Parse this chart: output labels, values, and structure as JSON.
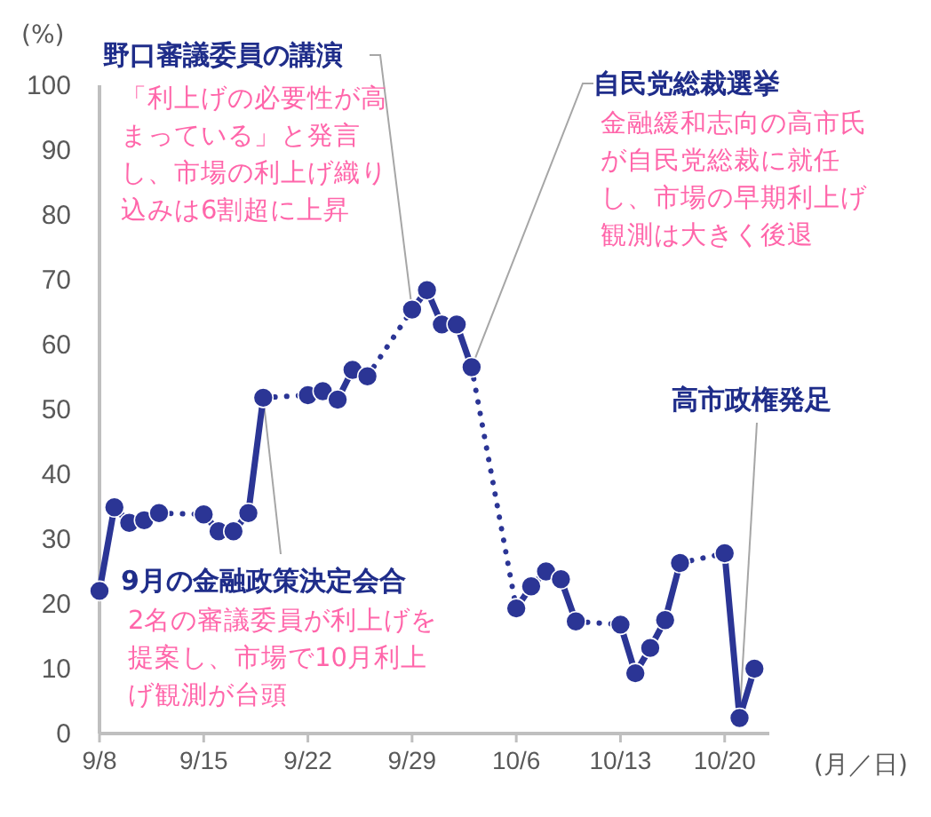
{
  "chart_data": {
    "type": "line",
    "ylabel": "(%)",
    "xlabel": "(月／日)",
    "x": [
      "--09-08",
      "--09-09",
      "--09-10",
      "--09-11",
      "--09-12",
      "--09-15",
      "--09-16",
      "--09-17",
      "--09-18",
      "--09-19",
      "--09-22",
      "--09-23",
      "--09-24",
      "--09-25",
      "--09-26",
      "--09-29",
      "--09-30",
      "--10-01",
      "--10-02",
      "--10-03",
      "--10-06",
      "--10-07",
      "--10-08",
      "--10-09",
      "--10-10",
      "--10-13",
      "--10-14",
      "--10-15",
      "--10-16",
      "--10-17",
      "--10-20",
      "--10-21",
      "--10-22"
    ],
    "series": [
      {
        "color": "#2b3595",
        "values": [
          22.0,
          34.9,
          32.5,
          32.9,
          34.0,
          33.8,
          31.2,
          31.2,
          34.0,
          51.8,
          52.2,
          52.8,
          51.5,
          56.1,
          55.1,
          65.4,
          68.4,
          63.1,
          63.1,
          56.5,
          19.3,
          22.7,
          25.0,
          23.8,
          17.3,
          16.8,
          9.3,
          13.2,
          17.5,
          26.3,
          27.8,
          2.4,
          10.0
        ]
      }
    ],
    "marker": "circle",
    "ylim": [
      0,
      100
    ],
    "yticks": [
      0,
      10,
      20,
      30,
      40,
      50,
      60,
      70,
      80,
      90,
      100
    ],
    "xlim": [
      "--09-08",
      "--10-23"
    ],
    "xticks": [
      {
        "value": "--09-08",
        "label": "9/8"
      },
      {
        "value": "--09-15",
        "label": "9/15"
      },
      {
        "value": "--09-22",
        "label": "9/22"
      },
      {
        "value": "--09-29",
        "label": "9/29"
      },
      {
        "value": "--10-06",
        "label": "10/6"
      },
      {
        "value": "--10-13",
        "label": "10/13"
      },
      {
        "value": "--10-20",
        "label": "10/20"
      }
    ],
    "annotations": [
      {
        "text": "野口審議委員の講演",
        "x": "--09-29",
        "y": 65.4
      },
      "「利上げの必要性が高まっている」と発言し、市場の利上げ織り込みは6割超に上昇",
      {
        "text": "自民党総裁選挙",
        "x": "--10-03",
        "y": 56.5
      },
      "金融緩和志向の高市氏が自民党総裁に就任し、市場の早期利上げ観測は大きく後退",
      {
        "text": "9月の金融政策決定会合",
        "x": "--09-19",
        "y": 51.8
      },
      "2名の審議委員が利上げを提案し、市場で10月利上げ観測が台頭",
      {
        "text": "高市政権発足",
        "x": "--10-21",
        "y": 2.4
      }
    ]
  }
}
